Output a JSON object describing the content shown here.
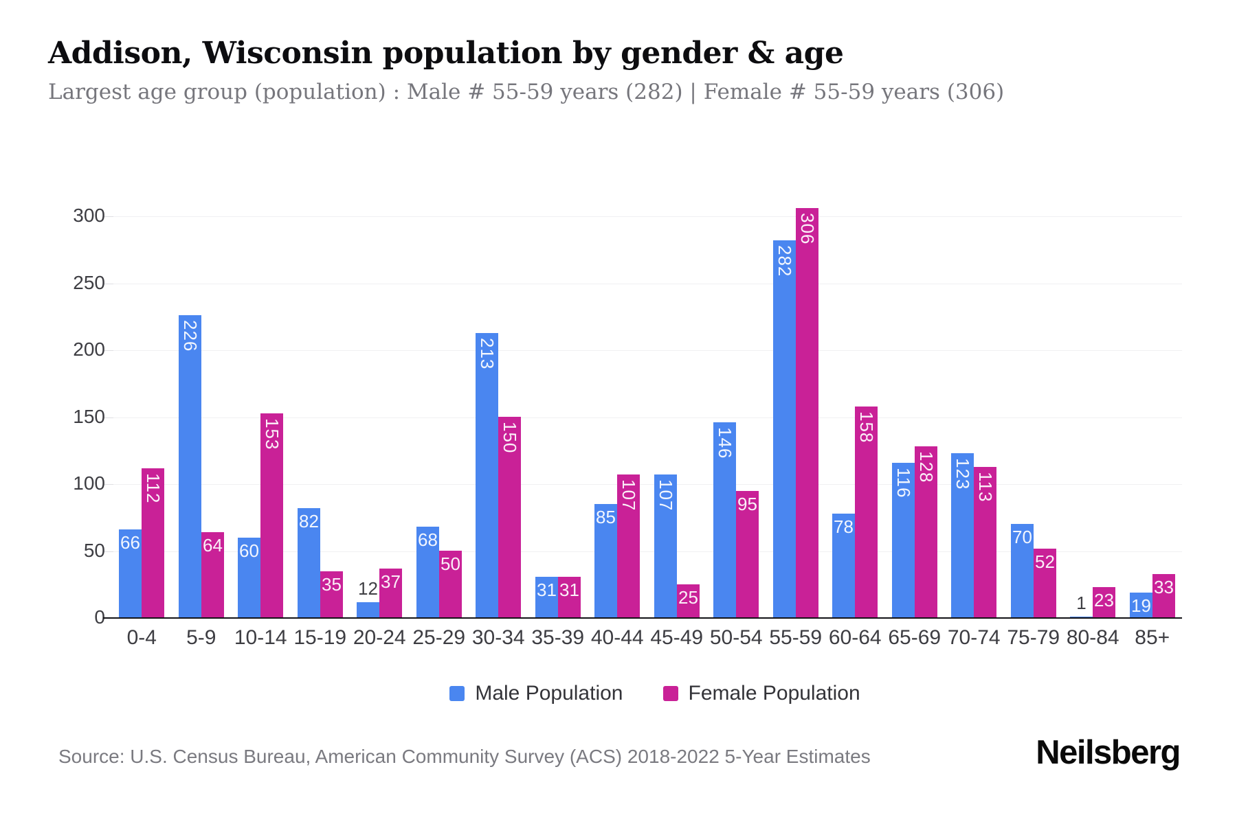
{
  "header": {
    "title": "Addison, Wisconsin population by gender & age",
    "subtitle": "Largest age group (population) : Male # 55-59 years (282) | Female # 55-59 years (306)"
  },
  "chart_data": {
    "type": "bar",
    "title": "Addison, Wisconsin population by gender & age",
    "categories": [
      "0-4",
      "5-9",
      "10-14",
      "15-19",
      "20-24",
      "25-29",
      "30-34",
      "35-39",
      "40-44",
      "45-49",
      "50-54",
      "55-59",
      "60-64",
      "65-69",
      "70-74",
      "75-79",
      "80-84",
      "85+"
    ],
    "series": [
      {
        "name": "Male Population",
        "color": "#4a86f0",
        "values": [
          66,
          226,
          60,
          82,
          12,
          68,
          213,
          31,
          85,
          107,
          146,
          282,
          78,
          116,
          123,
          70,
          1,
          19
        ]
      },
      {
        "name": "Female Population",
        "color": "#c92197",
        "values": [
          112,
          64,
          153,
          35,
          37,
          50,
          150,
          31,
          107,
          25,
          95,
          306,
          158,
          128,
          113,
          52,
          23,
          33
        ]
      }
    ],
    "xlabel": "",
    "ylabel": "",
    "ylim": [
      0,
      300
    ],
    "yticks": [
      0,
      50,
      100,
      150,
      200,
      250,
      300
    ],
    "grid": "horizontal",
    "legend_position": "bottom",
    "bar_label_color_inside": "#ffffff",
    "bar_label_color_outside": "#3f3f44"
  },
  "footer": {
    "source": "Source: U.S. Census Bureau, American Community Survey (ACS) 2018-2022 5-Year Estimates",
    "brand": "Neilsberg"
  }
}
